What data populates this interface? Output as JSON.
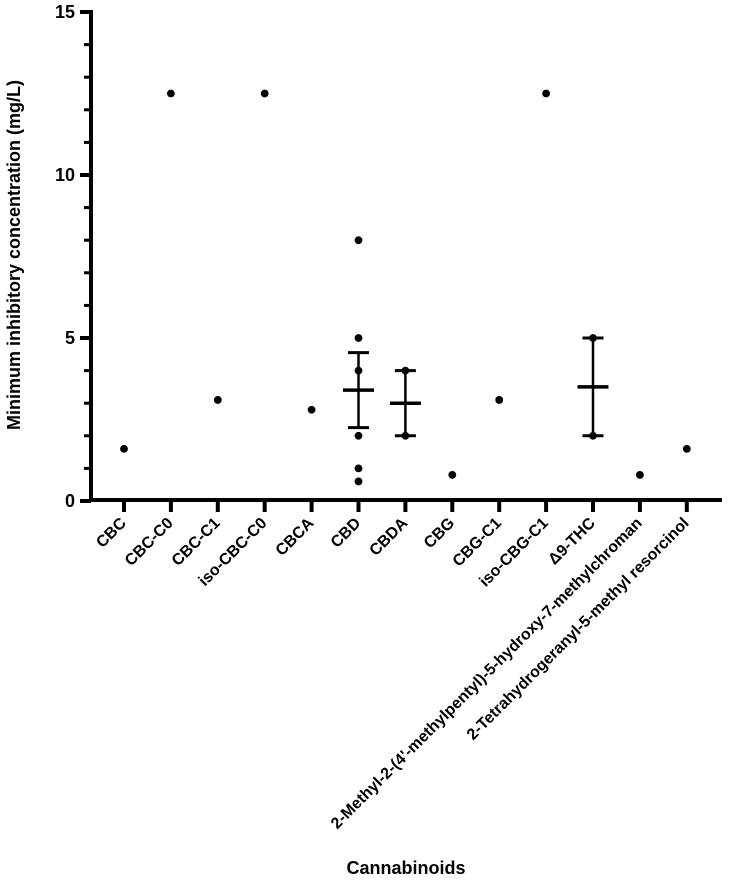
{
  "figure": {
    "background_color": "#ffffff",
    "foreground_color": "#000000"
  },
  "chart_data": {
    "type": "scatter",
    "subtype": "column-scatter-with-mean-sem",
    "title": "",
    "xlabel": "Cannabinoids",
    "ylabel": "Minimum inhibitory concentration (mg/L)",
    "ylim": [
      0,
      15
    ],
    "y_major_ticks": [
      0,
      5,
      10,
      15
    ],
    "y_major_tick_labels": [
      "0",
      "5",
      "10",
      "15"
    ],
    "y_minor_tick_step": 1,
    "grid": false,
    "legend": "none",
    "marker_color": "#000000",
    "axis_color": "#000000",
    "categories": [
      "CBC",
      "CBC-C0",
      "CBC-C1",
      "iso-CBC-C0",
      "CBCA",
      "CBD",
      "CBDA",
      "CBG",
      "CBG-C1",
      "iso-CBG-C1",
      "Δ9-THC",
      "2-Methyl-2-(4'-methylpentyl)-5-hydroxy-7-methylchroman",
      "2-Tetrahydrogeranyl-5-methyl resorcinol"
    ],
    "series": [
      {
        "category": "CBC",
        "points": [
          1.6
        ],
        "mean": null,
        "sem": null
      },
      {
        "category": "CBC-C0",
        "points": [
          12.5
        ],
        "mean": null,
        "sem": null
      },
      {
        "category": "CBC-C1",
        "points": [
          3.1
        ],
        "mean": null,
        "sem": null
      },
      {
        "category": "iso-CBC-C0",
        "points": [
          12.5
        ],
        "mean": null,
        "sem": null
      },
      {
        "category": "CBCA",
        "points": [
          2.8
        ],
        "mean": null,
        "sem": null
      },
      {
        "category": "CBD",
        "points": [
          8,
          5,
          4,
          2,
          1,
          0.6
        ],
        "mean": 3.4,
        "sem": 1.15
      },
      {
        "category": "CBDA",
        "points": [
          4,
          2
        ],
        "mean": 3.0,
        "sem": 1.0
      },
      {
        "category": "CBG",
        "points": [
          0.8
        ],
        "mean": null,
        "sem": null
      },
      {
        "category": "CBG-C1",
        "points": [
          3.1
        ],
        "mean": null,
        "sem": null
      },
      {
        "category": "iso-CBG-C1",
        "points": [
          12.5
        ],
        "mean": null,
        "sem": null
      },
      {
        "category": "Δ9-THC",
        "points": [
          5,
          2
        ],
        "mean": 3.5,
        "sem": 1.5
      },
      {
        "category": "2-Methyl-2-(4'-methylpentyl)-5-hydroxy-7-methylchroman",
        "points": [
          0.8
        ],
        "mean": null,
        "sem": null
      },
      {
        "category": "2-Tetrahydrogeranyl-5-methyl resorcinol",
        "points": [
          1.6
        ],
        "mean": null,
        "sem": null
      }
    ]
  }
}
